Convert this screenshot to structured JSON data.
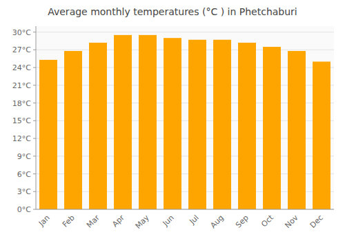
{
  "chart_data": {
    "type": "bar",
    "title": "Average monthly temperatures (°C ) in Phetchaburi",
    "categories": [
      "Jan",
      "Feb",
      "Mar",
      "Apr",
      "May",
      "Jun",
      "Jul",
      "Aug",
      "Sep",
      "Oct",
      "Nov",
      "Dec"
    ],
    "values": [
      25.3,
      26.8,
      28.2,
      29.5,
      29.5,
      29.0,
      28.7,
      28.7,
      28.2,
      27.5,
      26.8,
      25.0
    ],
    "color": "#FFA500",
    "ylim": [
      0,
      31
    ],
    "yticks": [
      {
        "value": 0,
        "label": "0°C"
      },
      {
        "value": 3,
        "label": "3°C"
      },
      {
        "value": 6,
        "label": "6°C"
      },
      {
        "value": 9,
        "label": "9°C"
      },
      {
        "value": 12,
        "label": "12°C"
      },
      {
        "value": 15,
        "label": "15°C"
      },
      {
        "value": 18,
        "label": "18°C"
      },
      {
        "value": 21,
        "label": "21°C"
      },
      {
        "value": 24,
        "label": "24°C"
      },
      {
        "value": 27,
        "label": "27°C"
      },
      {
        "value": 30,
        "label": "30°C"
      }
    ],
    "grid": true
  }
}
